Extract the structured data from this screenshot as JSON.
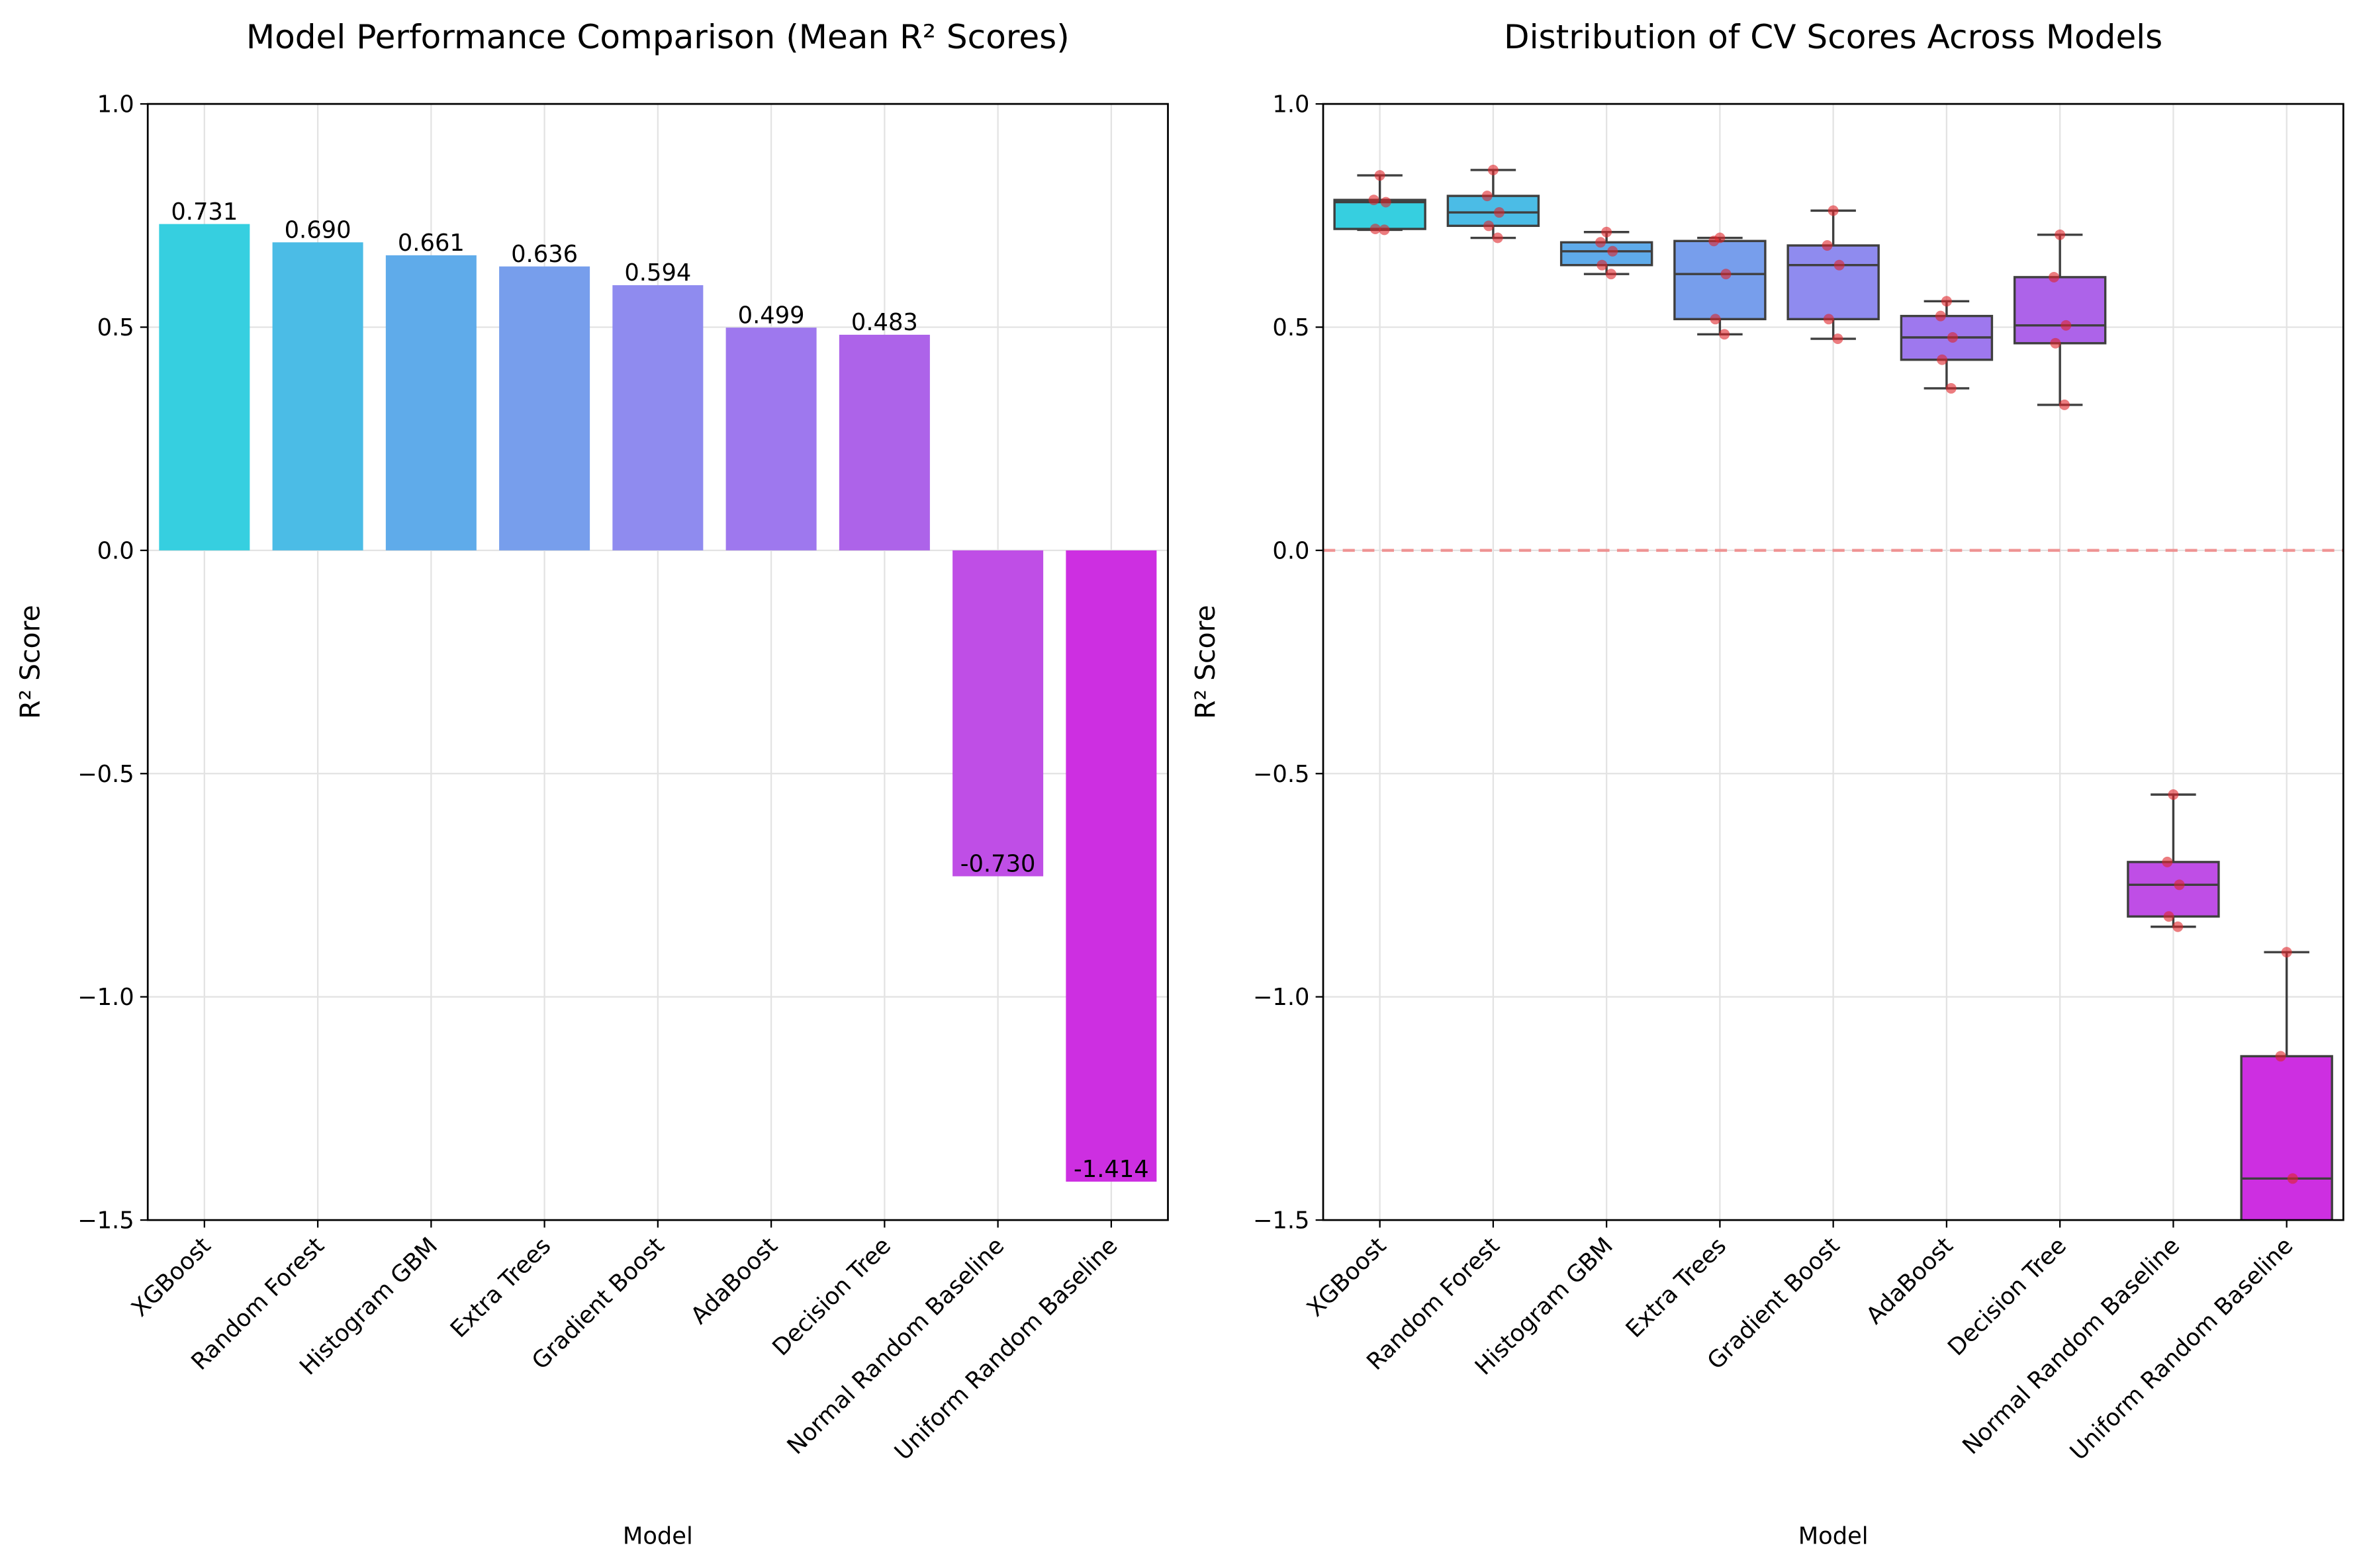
{
  "chart_data": [
    {
      "type": "bar",
      "title": "Model Performance Comparison (Mean R² Scores)",
      "xlabel": "Model",
      "ylabel": "R² Score",
      "categories": [
        "XGBoost",
        "Random Forest",
        "Histogram GBM",
        "Extra Trees",
        "Gradient Boost",
        "AdaBoost",
        "Decision Tree",
        "Normal Random Baseline",
        "Uniform Random Baseline"
      ],
      "values": [
        0.731,
        0.69,
        0.661,
        0.636,
        0.594,
        0.499,
        0.483,
        -0.73,
        -1.414
      ],
      "value_labels": [
        "0.731",
        "0.690",
        "0.661",
        "0.636",
        "0.594",
        "0.499",
        "0.483",
        "-0.730",
        "-1.414"
      ],
      "colors": [
        "#36cfe0",
        "#4bbce6",
        "#5fabea",
        "#779eec",
        "#8f8bef",
        "#9e78ee",
        "#ad63e9",
        "#bf4ee6",
        "#cd2fe1"
      ],
      "ylim": [
        -1.5,
        1.0
      ],
      "yticks": [
        {
          "value": -1.5,
          "label": "−1.5"
        },
        {
          "value": -1.0,
          "label": "−1.0"
        },
        {
          "value": -0.5,
          "label": "−0.5"
        },
        {
          "value": 0.0,
          "label": "0.0"
        },
        {
          "value": 0.5,
          "label": "0.5"
        },
        {
          "value": 1.0,
          "label": "1.0"
        }
      ],
      "grid": true
    },
    {
      "type": "box",
      "title": "Distribution of CV Scores Across Models",
      "xlabel": "Model",
      "ylabel": "R² Score",
      "categories": [
        "XGBoost",
        "Random Forest",
        "Histogram GBM",
        "Extra Trees",
        "Gradient Boost",
        "AdaBoost",
        "Decision Tree",
        "Normal Random Baseline",
        "Uniform Random Baseline"
      ],
      "colors": [
        "#36cfe0",
        "#4bbce6",
        "#5fabea",
        "#779eec",
        "#8f8bef",
        "#9e78ee",
        "#ad63e9",
        "#bf4ee6",
        "#cd2fe1"
      ],
      "boxes": [
        {
          "min": 0.718,
          "q1": 0.72,
          "median": 0.78,
          "q3": 0.785,
          "max": 0.84,
          "points": [
            0.84,
            0.785,
            0.78,
            0.72,
            0.718
          ]
        },
        {
          "min": 0.7,
          "q1": 0.727,
          "median": 0.757,
          "q3": 0.794,
          "max": 0.852,
          "points": [
            0.852,
            0.794,
            0.757,
            0.727,
            0.7
          ]
        },
        {
          "min": 0.619,
          "q1": 0.639,
          "median": 0.67,
          "q3": 0.69,
          "max": 0.713,
          "points": [
            0.713,
            0.69,
            0.67,
            0.639,
            0.619
          ]
        },
        {
          "min": 0.484,
          "q1": 0.518,
          "median": 0.619,
          "q3": 0.693,
          "max": 0.7,
          "points": [
            0.7,
            0.693,
            0.619,
            0.518,
            0.484
          ]
        },
        {
          "min": 0.474,
          "q1": 0.518,
          "median": 0.639,
          "q3": 0.683,
          "max": 0.761,
          "points": [
            0.761,
            0.683,
            0.639,
            0.518,
            0.474
          ]
        },
        {
          "min": 0.363,
          "q1": 0.427,
          "median": 0.477,
          "q3": 0.525,
          "max": 0.558,
          "points": [
            0.558,
            0.525,
            0.477,
            0.427,
            0.363
          ]
        },
        {
          "min": 0.326,
          "q1": 0.464,
          "median": 0.504,
          "q3": 0.612,
          "max": 0.707,
          "points": [
            0.707,
            0.612,
            0.504,
            0.464,
            0.326
          ]
        },
        {
          "min": -0.843,
          "q1": -0.82,
          "median": -0.749,
          "q3": -0.698,
          "max": -0.547,
          "points": [
            -0.547,
            -0.698,
            -0.749,
            -0.82,
            -0.843
          ]
        },
        {
          "min": -1.7,
          "q1": -1.55,
          "median": -1.407,
          "q3": -1.133,
          "max": -0.9,
          "points": [
            -0.9,
            -1.133,
            -1.407,
            -1.55,
            -1.7
          ]
        }
      ],
      "hline": 0.0,
      "hline_color": "#f08080",
      "ylim": [
        -1.5,
        1.0
      ],
      "yticks": [
        {
          "value": -1.5,
          "label": "−1.5"
        },
        {
          "value": -1.0,
          "label": "−1.0"
        },
        {
          "value": -0.5,
          "label": "−0.5"
        },
        {
          "value": 0.0,
          "label": "0.0"
        },
        {
          "value": 0.5,
          "label": "0.5"
        },
        {
          "value": 1.0,
          "label": "1.0"
        }
      ],
      "grid": true
    }
  ]
}
